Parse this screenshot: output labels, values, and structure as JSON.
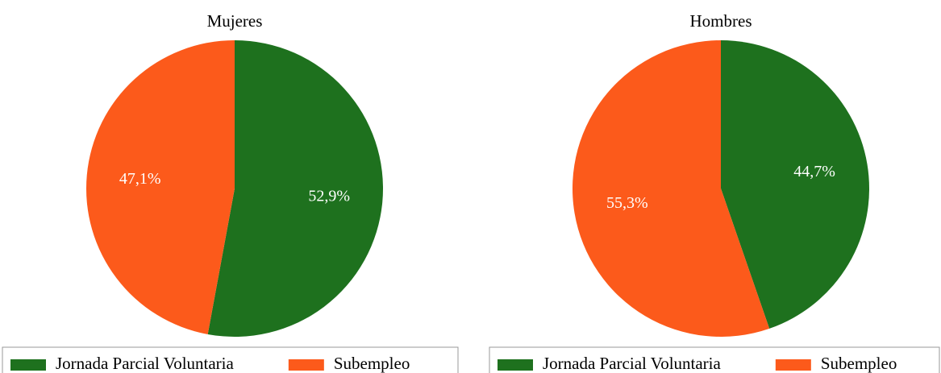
{
  "chart_data": [
    {
      "type": "pie",
      "title": "Mujeres",
      "categories": [
        "Jornada Parcial Voluntaria",
        "Subempleo"
      ],
      "values": [
        52.9,
        47.1
      ],
      "value_labels": [
        "52,9%",
        "47,1%"
      ],
      "colors": [
        "#1e711e",
        "#fc5a1b"
      ]
    },
    {
      "type": "pie",
      "title": "Hombres",
      "categories": [
        "Jornada Parcial Voluntaria",
        "Subempleo"
      ],
      "values": [
        44.7,
        55.3
      ],
      "value_labels": [
        "44,7%",
        "55,3%"
      ],
      "colors": [
        "#1e711e",
        "#fc5a1b"
      ]
    }
  ]
}
